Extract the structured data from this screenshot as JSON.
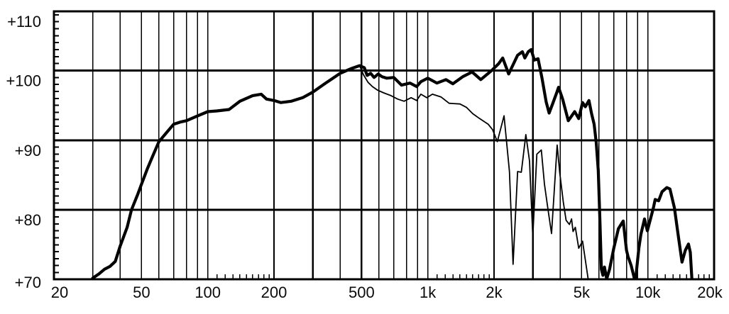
{
  "chart_data": {
    "type": "line",
    "x_axis": {
      "scale": "log",
      "min": 20,
      "max": 20000,
      "ticks": [
        {
          "label": "20",
          "value": 20
        },
        {
          "label": "50",
          "value": 50
        },
        {
          "label": "100",
          "value": 100
        },
        {
          "label": "200",
          "value": 200
        },
        {
          "label": "500",
          "value": 500
        },
        {
          "label": "1k",
          "value": 1000
        },
        {
          "label": "2k",
          "value": 2000
        },
        {
          "label": "5k",
          "value": 5000
        },
        {
          "label": "10k",
          "value": 10000
        },
        {
          "label": "20k",
          "value": 20000
        }
      ],
      "gridlines": [
        30,
        40,
        50,
        60,
        70,
        80,
        90,
        100,
        200,
        300,
        400,
        500,
        600,
        700,
        800,
        900,
        1000,
        2000,
        3000,
        4000,
        5000,
        6000,
        7000,
        8000,
        9000,
        10000
      ],
      "emphasized_gridlines": [
        200,
        300,
        500,
        2000,
        3000
      ],
      "minor_ticks": [
        110,
        120,
        130,
        140,
        150,
        160,
        170,
        180,
        190,
        1100,
        1200,
        1300,
        1400,
        1500,
        1600,
        1700,
        1800,
        1900,
        11000,
        12000,
        13000,
        14000,
        15000,
        16000,
        17000,
        18000,
        19000
      ]
    },
    "y_axis": {
      "scale": "linear",
      "min": 70,
      "max": 108.5,
      "ticks": [
        {
          "label": "+110",
          "value": 110
        },
        {
          "label": "+100",
          "value": 100
        },
        {
          "label": "+90",
          "value": 90
        },
        {
          "label": "+80",
          "value": 80
        },
        {
          "label": "+70",
          "value": 70
        }
      ],
      "gridlines": [
        100,
        90,
        80
      ],
      "minor_tick_step": 1
    },
    "legend": null,
    "grid": true,
    "series": [
      {
        "name": "thin-curve",
        "style": "thin",
        "points": [
          [
            490,
            100.7
          ],
          [
            510,
            99.4
          ],
          [
            535,
            98.3
          ],
          [
            560,
            97.7
          ],
          [
            590,
            97.2
          ],
          [
            630,
            96.8
          ],
          [
            680,
            96.4
          ],
          [
            730,
            95.9
          ],
          [
            780,
            95.6
          ],
          [
            840,
            96.1
          ],
          [
            890,
            95.7
          ],
          [
            930,
            96.6
          ],
          [
            990,
            96.1
          ],
          [
            1050,
            96.6
          ],
          [
            1150,
            96.2
          ],
          [
            1250,
            95.3
          ],
          [
            1400,
            95.2
          ],
          [
            1500,
            94.7
          ],
          [
            1600,
            93.8
          ],
          [
            1720,
            93.1
          ],
          [
            1880,
            92.3
          ],
          [
            1970,
            91.5
          ],
          [
            2070,
            89.8
          ],
          [
            2220,
            93.5
          ],
          [
            2350,
            85.5
          ],
          [
            2440,
            72.2
          ],
          [
            2560,
            85.5
          ],
          [
            2660,
            85.4
          ],
          [
            2790,
            90.8
          ],
          [
            2900,
            87.0
          ],
          [
            3000,
            76.2
          ],
          [
            3130,
            88.0
          ],
          [
            3280,
            88.6
          ],
          [
            3390,
            83.7
          ],
          [
            3520,
            80.0
          ],
          [
            3650,
            76.6
          ],
          [
            3870,
            89.3
          ],
          [
            3980,
            85.3
          ],
          [
            4130,
            81.1
          ],
          [
            4250,
            78.5
          ],
          [
            4400,
            77.9
          ],
          [
            4500,
            78.7
          ],
          [
            4570,
            76.9
          ],
          [
            4680,
            77.5
          ],
          [
            4850,
            74.5
          ],
          [
            5050,
            75.5
          ],
          [
            5400,
            69.3
          ]
        ]
      },
      {
        "name": "thick-curve",
        "style": "thick",
        "points": [
          [
            30,
            70.2
          ],
          [
            32,
            70.8
          ],
          [
            34,
            71.5
          ],
          [
            36,
            71.9
          ],
          [
            38,
            72.6
          ],
          [
            40,
            74.8
          ],
          [
            43,
            77.5
          ],
          [
            45,
            80.0
          ],
          [
            48,
            82.2
          ],
          [
            50,
            83.7
          ],
          [
            53,
            85.8
          ],
          [
            56,
            87.6
          ],
          [
            60,
            89.8
          ],
          [
            65,
            91.1
          ],
          [
            70,
            92.3
          ],
          [
            75,
            92.6
          ],
          [
            80,
            92.8
          ],
          [
            90,
            93.5
          ],
          [
            100,
            94.1
          ],
          [
            110,
            94.2
          ],
          [
            125,
            94.4
          ],
          [
            140,
            95.6
          ],
          [
            160,
            96.4
          ],
          [
            175,
            96.6
          ],
          [
            185,
            95.9
          ],
          [
            200,
            95.7
          ],
          [
            215,
            95.4
          ],
          [
            240,
            95.6
          ],
          [
            270,
            96.1
          ],
          [
            300,
            96.9
          ],
          [
            340,
            98.1
          ],
          [
            400,
            99.6
          ],
          [
            450,
            100.3
          ],
          [
            490,
            100.7
          ],
          [
            515,
            100.4
          ],
          [
            530,
            99.3
          ],
          [
            550,
            99.6
          ],
          [
            570,
            99.0
          ],
          [
            595,
            99.5
          ],
          [
            620,
            99.1
          ],
          [
            650,
            98.9
          ],
          [
            700,
            99.0
          ],
          [
            760,
            97.9
          ],
          [
            830,
            98.2
          ],
          [
            890,
            97.7
          ],
          [
            930,
            98.4
          ],
          [
            1000,
            98.9
          ],
          [
            1100,
            98.2
          ],
          [
            1210,
            98.7
          ],
          [
            1300,
            98.1
          ],
          [
            1440,
            99.1
          ],
          [
            1590,
            99.8
          ],
          [
            1740,
            98.7
          ],
          [
            1950,
            100.0
          ],
          [
            2100,
            101.0
          ],
          [
            2190,
            101.8
          ],
          [
            2330,
            99.5
          ],
          [
            2560,
            102.2
          ],
          [
            2690,
            102.7
          ],
          [
            2760,
            101.8
          ],
          [
            2860,
            102.7
          ],
          [
            2950,
            103.0
          ],
          [
            3050,
            101.5
          ],
          [
            3170,
            101.7
          ],
          [
            3300,
            99.0
          ],
          [
            3450,
            95.5
          ],
          [
            3560,
            93.9
          ],
          [
            3700,
            95.3
          ],
          [
            3850,
            96.8
          ],
          [
            3930,
            97.6
          ],
          [
            4100,
            95.9
          ],
          [
            4350,
            92.8
          ],
          [
            4650,
            94.1
          ],
          [
            4850,
            93.1
          ],
          [
            5050,
            95.4
          ],
          [
            5200,
            94.8
          ],
          [
            5400,
            95.7
          ],
          [
            5550,
            93.8
          ],
          [
            5700,
            92.3
          ],
          [
            5830,
            89.6
          ],
          [
            5950,
            85.7
          ],
          [
            6060,
            78.3
          ],
          [
            6150,
            71.5
          ],
          [
            6250,
            70.6
          ],
          [
            6350,
            71.8
          ],
          [
            6500,
            70.1
          ],
          [
            6700,
            71.5
          ],
          [
            7000,
            74.5
          ],
          [
            7350,
            77.3
          ],
          [
            7730,
            78.4
          ],
          [
            8000,
            74.2
          ],
          [
            8130,
            73.3
          ],
          [
            8400,
            72.0
          ],
          [
            8770,
            69.6
          ],
          [
            9100,
            74.5
          ],
          [
            9300,
            76.5
          ],
          [
            9660,
            78.7
          ],
          [
            9950,
            77.0
          ],
          [
            10600,
            80.3
          ],
          [
            10800,
            81.5
          ],
          [
            11200,
            81.3
          ],
          [
            11600,
            82.6
          ],
          [
            12200,
            83.2
          ],
          [
            12600,
            83.0
          ],
          [
            13200,
            80.3
          ],
          [
            13700,
            76.6
          ],
          [
            14300,
            72.5
          ],
          [
            14800,
            74.2
          ],
          [
            15300,
            75.1
          ],
          [
            15600,
            73.9
          ],
          [
            15900,
            69.4
          ]
        ]
      }
    ],
    "colors": {
      "background": "#ffffff",
      "grid": "#000000",
      "curve": "#000000",
      "text": "#111111"
    }
  }
}
